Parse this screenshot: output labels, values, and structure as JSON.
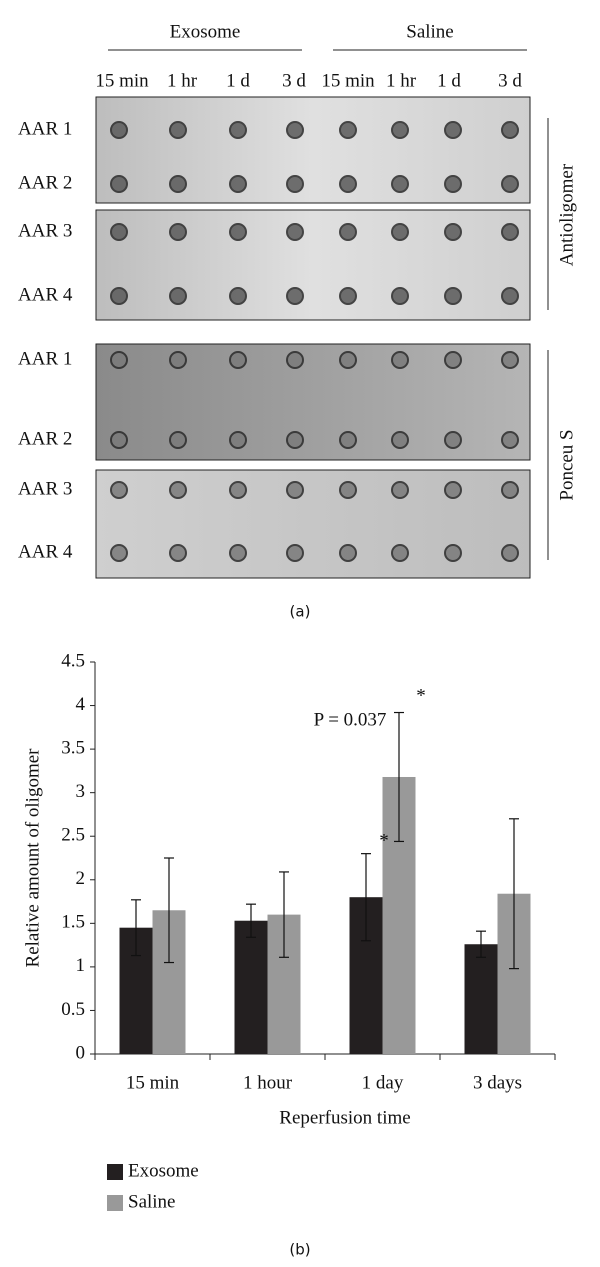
{
  "blot": {
    "groups": [
      "Exosome",
      "Saline"
    ],
    "times": [
      "15 min",
      "1 hr",
      "1 d",
      "3 d",
      "15 min",
      "1 hr",
      "1 d",
      "3 d"
    ],
    "panels": [
      {
        "label": "Antioligomer",
        "rows": [
          "AAR 1",
          "AAR 2",
          "AAR 3",
          "AAR 4"
        ]
      },
      {
        "label": "Ponceu S",
        "rows": [
          "AAR 1",
          "AAR 2",
          "AAR 3",
          "AAR 4"
        ]
      }
    ],
    "panel_label": "(a)"
  },
  "chart_data": {
    "type": "bar",
    "panel_label": "(b)",
    "x_label": "Reperfusion time",
    "y_label": "Relative amount of oligomer",
    "categories": [
      "15 min",
      "1 hour",
      "1 day",
      "3 days"
    ],
    "series": [
      {
        "name": "Exosome",
        "color": "#231f20",
        "values": [
          1.45,
          1.53,
          1.8,
          1.26
        ],
        "errors": [
          0.32,
          0.19,
          0.5,
          0.15
        ]
      },
      {
        "name": "Saline",
        "color": "#999999",
        "values": [
          1.65,
          1.6,
          3.18,
          1.84
        ],
        "errors": [
          0.6,
          0.49,
          0.74,
          0.86
        ]
      }
    ],
    "ylim": [
      0,
      4.5
    ],
    "yticks": [
      0,
      0.5,
      1,
      1.5,
      2,
      2.5,
      3,
      3.5,
      4,
      4.5
    ],
    "annotations": [
      "*",
      "*",
      "P = 0.037"
    ]
  }
}
